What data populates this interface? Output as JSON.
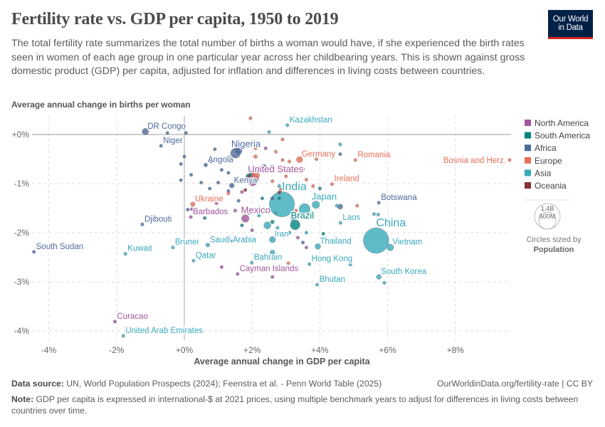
{
  "header": {
    "title": "Fertility rate vs. GDP per capita, 1950 to 2019",
    "subtitle": "The total fertility rate summarizes the total number of births a woman would have, if she experienced the birth rates seen in women of each age group in one particular year across her childbearing years. This is shown against gross domestic product (GDP) per capita, adjusted for inflation and differences in living costs between countries.",
    "logo_line1": "Our World",
    "logo_line2": "in Data"
  },
  "footer": {
    "source_label": "Data source:",
    "source_text": "UN, World Population Prospects (2024); Feenstra et al. - Penn World Table (2025)",
    "url": "OurWorldinData.org/fertility-rate | CC BY",
    "note_label": "Note:",
    "note_text": "GDP per capita is expressed in international-$ at 2021 prices, using multiple benchmark years to adjust for differences in living costs between countries over time."
  },
  "chart_data": {
    "type": "scatter",
    "title": "Fertility rate vs. GDP per capita, 1950 to 2019",
    "xlabel": "Average annual change in GDP per capita",
    "ylabel": "Average annual change in births per woman",
    "xlim": [
      -4.5,
      9.7
    ],
    "ylim": [
      -4.2,
      0.35
    ],
    "x_ticks": [
      -4,
      -2,
      0,
      2,
      4,
      6,
      8
    ],
    "x_tick_labels": [
      "-4%",
      "-2%",
      "+0%",
      "+2%",
      "+4%",
      "+6%",
      "+8%"
    ],
    "y_ticks": [
      0,
      -1,
      -2,
      -3,
      -4
    ],
    "y_tick_labels": [
      "+0%",
      "-1%",
      "-2%",
      "-3%",
      "-4%"
    ],
    "grid": true,
    "legend_position": "right",
    "regions": [
      {
        "name": "North America",
        "color": "#a2559c"
      },
      {
        "name": "South America",
        "color": "#00847e"
      },
      {
        "name": "Africa",
        "color": "#4c6a9c"
      },
      {
        "name": "Europe",
        "color": "#e56e5a"
      },
      {
        "name": "Asia",
        "color": "#38aaba"
      },
      {
        "name": "Oceania",
        "color": "#883039"
      }
    ],
    "size_legend": {
      "values": [
        "1.4B",
        "600M"
      ],
      "caption": "Circles sized by",
      "variable": "Population"
    },
    "points": [
      {
        "name": "DR Congo",
        "x": -1.15,
        "y": 0.06,
        "region": "Africa",
        "pop": 90
      },
      {
        "name": "Niger",
        "x": -0.69,
        "y": -0.23,
        "region": "Africa",
        "pop": 24
      },
      {
        "name": "Nigeria",
        "x": 1.51,
        "y": -0.38,
        "region": "Africa",
        "pop": 210
      },
      {
        "name": "Angola",
        "x": 0.63,
        "y": -0.62,
        "region": "Africa",
        "pop": 32
      },
      {
        "name": "Kenya",
        "x": 1.4,
        "y": -1.04,
        "region": "Africa",
        "pop": 52
      },
      {
        "name": "United States",
        "x": 2.0,
        "y": -0.92,
        "region": "North America",
        "pop": 330
      },
      {
        "name": "Germany",
        "x": 3.4,
        "y": -0.51,
        "region": "Europe",
        "pop": 83
      },
      {
        "name": "Romania",
        "x": 5.05,
        "y": -0.52,
        "region": "Europe",
        "pop": 19
      },
      {
        "name": "Bosnia and Herz.",
        "x": 9.6,
        "y": -0.52,
        "region": "Europe",
        "pop": 3
      },
      {
        "name": "Ireland",
        "x": 4.36,
        "y": -1.01,
        "region": "Europe",
        "pop": 5
      },
      {
        "name": "India",
        "x": 2.88,
        "y": -1.42,
        "region": "Asia",
        "pop": 1380
      },
      {
        "name": "Japan",
        "x": 3.88,
        "y": -1.43,
        "region": "Asia",
        "pop": 125
      },
      {
        "name": "Botswana",
        "x": 5.74,
        "y": -1.39,
        "region": "Africa",
        "pop": 2.5
      },
      {
        "name": "Ukraine",
        "x": 0.25,
        "y": -1.42,
        "region": "Europe",
        "pop": 44
      },
      {
        "name": "Barbados",
        "x": 0.19,
        "y": -1.68,
        "region": "North America",
        "pop": 0.3
      },
      {
        "name": "Mexico",
        "x": 1.8,
        "y": -1.71,
        "region": "North America",
        "pop": 125
      },
      {
        "name": "Brazil",
        "x": 3.27,
        "y": -1.84,
        "region": "South America",
        "pop": 210
      },
      {
        "name": "Laos",
        "x": 4.61,
        "y": -1.8,
        "region": "Asia",
        "pop": 7
      },
      {
        "name": "China",
        "x": 5.66,
        "y": -2.16,
        "region": "Asia",
        "pop": 1420
      },
      {
        "name": "Vietnam",
        "x": 6.08,
        "y": -2.3,
        "region": "Asia",
        "pop": 97
      },
      {
        "name": "Djibouti",
        "x": -1.24,
        "y": -1.83,
        "region": "Africa",
        "pop": 1
      },
      {
        "name": "Iran",
        "x": 2.6,
        "y": -2.14,
        "region": "Asia",
        "pop": 85
      },
      {
        "name": "Thailand",
        "x": 3.94,
        "y": -2.28,
        "region": "Asia",
        "pop": 70
      },
      {
        "name": "Saudi Arabia",
        "x": 0.69,
        "y": -2.25,
        "region": "Asia",
        "pop": 35
      },
      {
        "name": "South Sudan",
        "x": -4.44,
        "y": -2.39,
        "region": "Africa",
        "pop": 11
      },
      {
        "name": "Kuwait",
        "x": -1.74,
        "y": -2.43,
        "region": "Asia",
        "pop": 4
      },
      {
        "name": "Brunei",
        "x": -0.34,
        "y": -2.3,
        "region": "Asia",
        "pop": 0.4
      },
      {
        "name": "Qatar",
        "x": 0.27,
        "y": -2.57,
        "region": "Asia",
        "pop": 2.8
      },
      {
        "name": "Bahrain",
        "x": 1.99,
        "y": -2.61,
        "region": "Asia",
        "pop": 1.5
      },
      {
        "name": "Hong Kong",
        "x": 3.69,
        "y": -2.64,
        "region": "Asia",
        "pop": 7.5
      },
      {
        "name": "Cayman Islands",
        "x": 1.57,
        "y": -2.84,
        "region": "North America",
        "pop": 0.07
      },
      {
        "name": "South Korea",
        "x": 5.74,
        "y": -2.9,
        "region": "Asia",
        "pop": 52
      },
      {
        "name": "Bhutan",
        "x": 3.92,
        "y": -3.06,
        "region": "Asia",
        "pop": 0.8
      },
      {
        "name": "Curacao",
        "x": -2.05,
        "y": -3.81,
        "region": "North America",
        "pop": 0.15
      },
      {
        "name": "United Arab Emirates",
        "x": -1.8,
        "y": -4.1,
        "region": "Asia",
        "pop": 9
      },
      {
        "name": "Kazakhstan",
        "x": 3.04,
        "y": 0.19,
        "region": "Asia",
        "pop": 1
      },
      {
        "name": "",
        "x": -0.5,
        "y": 0.03,
        "region": "Africa",
        "pop": 3
      },
      {
        "name": "",
        "x": 0.05,
        "y": 0.03,
        "region": "Africa",
        "pop": 3
      },
      {
        "name": "",
        "x": 0.0,
        "y": -0.45,
        "region": "Africa",
        "pop": 3
      },
      {
        "name": "",
        "x": -0.1,
        "y": -0.6,
        "region": "Africa",
        "pop": 4
      },
      {
        "name": "",
        "x": 0.2,
        "y": -0.82,
        "region": "Africa",
        "pop": 3
      },
      {
        "name": "",
        "x": -0.1,
        "y": -0.93,
        "region": "Africa",
        "pop": 6
      },
      {
        "name": "",
        "x": 0.5,
        "y": -0.98,
        "region": "Africa",
        "pop": 3
      },
      {
        "name": "",
        "x": 0.8,
        "y": -0.55,
        "region": "Africa",
        "pop": 3
      },
      {
        "name": "",
        "x": 1.1,
        "y": -0.72,
        "region": "Africa",
        "pop": 3
      },
      {
        "name": "",
        "x": 1.3,
        "y": -0.78,
        "region": "Africa",
        "pop": 5
      },
      {
        "name": "",
        "x": 0.75,
        "y": -1.1,
        "region": "Africa",
        "pop": 3
      },
      {
        "name": "",
        "x": 1.0,
        "y": -0.98,
        "region": "Africa",
        "pop": 5
      },
      {
        "name": "",
        "x": 1.3,
        "y": -1.15,
        "region": "Africa",
        "pop": 3
      },
      {
        "name": "",
        "x": 0.1,
        "y": -1.53,
        "region": "Africa",
        "pop": 6
      },
      {
        "name": "",
        "x": 1.0,
        "y": -1.6,
        "region": "Africa",
        "pop": 20
      },
      {
        "name": "",
        "x": 1.6,
        "y": -1.35,
        "region": "Africa",
        "pop": 3
      },
      {
        "name": "",
        "x": 2.35,
        "y": -0.65,
        "region": "Africa",
        "pop": 40
      },
      {
        "name": "",
        "x": 1.3,
        "y": -0.45,
        "region": "Africa",
        "pop": 3
      },
      {
        "name": "",
        "x": 0.9,
        "y": -0.3,
        "region": "Africa",
        "pop": 3
      },
      {
        "name": "",
        "x": 1.6,
        "y": -0.33,
        "region": "Africa",
        "pop": 110
      },
      {
        "name": "",
        "x": 4.6,
        "y": -0.4,
        "region": "Africa",
        "pop": 3
      },
      {
        "name": "",
        "x": 4.6,
        "y": -1.47,
        "region": "Africa",
        "pop": 60
      },
      {
        "name": "",
        "x": 3.5,
        "y": -2.2,
        "region": "Africa",
        "pop": 3
      },
      {
        "name": "",
        "x": 2.6,
        "y": -1.3,
        "region": "Africa",
        "pop": 12
      },
      {
        "name": "",
        "x": 1.95,
        "y": 0.33,
        "region": "Europe",
        "pop": 3
      },
      {
        "name": "",
        "x": 2.1,
        "y": -0.28,
        "region": "Europe",
        "pop": 3
      },
      {
        "name": "",
        "x": 2.1,
        "y": -0.45,
        "region": "Europe",
        "pop": 30
      },
      {
        "name": "",
        "x": 2.9,
        "y": -0.1,
        "region": "Europe",
        "pop": 3
      },
      {
        "name": "",
        "x": 2.7,
        "y": -0.35,
        "region": "Europe",
        "pop": 3
      },
      {
        "name": "",
        "x": 2.9,
        "y": -0.52,
        "region": "Europe",
        "pop": 3
      },
      {
        "name": "",
        "x": 3.1,
        "y": -0.55,
        "region": "Europe",
        "pop": 4
      },
      {
        "name": "",
        "x": 3.5,
        "y": -0.7,
        "region": "Europe",
        "pop": 3
      },
      {
        "name": "",
        "x": 3.0,
        "y": -0.85,
        "region": "Europe",
        "pop": 3
      },
      {
        "name": "",
        "x": 3.3,
        "y": -1.05,
        "region": "Europe",
        "pop": 10
      },
      {
        "name": "",
        "x": 2.6,
        "y": -0.95,
        "region": "Europe",
        "pop": 3
      },
      {
        "name": "",
        "x": 3.6,
        "y": -0.92,
        "region": "Europe",
        "pop": 10
      },
      {
        "name": "",
        "x": 3.8,
        "y": -1.05,
        "region": "Europe",
        "pop": 3
      },
      {
        "name": "",
        "x": 5.1,
        "y": -1.45,
        "region": "Europe",
        "pop": 3
      },
      {
        "name": "",
        "x": 3.3,
        "y": -1.55,
        "region": "Europe",
        "pop": 5
      },
      {
        "name": "",
        "x": 1.3,
        "y": -1.2,
        "region": "Europe",
        "pop": 3
      },
      {
        "name": "",
        "x": 3.9,
        "y": -0.5,
        "region": "Europe",
        "pop": 3
      },
      {
        "name": "",
        "x": 2.1,
        "y": -0.83,
        "region": "Europe",
        "pop": 140
      },
      {
        "name": "",
        "x": 3.07,
        "y": -2.62,
        "region": "Europe",
        "pop": 3
      },
      {
        "name": "",
        "x": 2.85,
        "y": -1.12,
        "region": "Europe",
        "pop": 3
      },
      {
        "name": "",
        "x": 2.5,
        "y": 0.05,
        "region": "Asia",
        "pop": 3
      },
      {
        "name": "",
        "x": 4.6,
        "y": -0.2,
        "region": "Asia",
        "pop": 4
      },
      {
        "name": "",
        "x": 2.6,
        "y": -0.65,
        "region": "Asia",
        "pop": 3
      },
      {
        "name": "",
        "x": 1.9,
        "y": -0.85,
        "region": "Asia",
        "pop": 70
      },
      {
        "name": "",
        "x": 2.8,
        "y": -1.05,
        "region": "Asia",
        "pop": 3
      },
      {
        "name": "",
        "x": 1.9,
        "y": -1.6,
        "region": "Asia",
        "pop": 3
      },
      {
        "name": "",
        "x": 2.2,
        "y": -1.65,
        "region": "Asia",
        "pop": 5
      },
      {
        "name": "",
        "x": 2.7,
        "y": -1.6,
        "region": "Asia",
        "pop": 5
      },
      {
        "name": "",
        "x": 2.45,
        "y": -1.85,
        "region": "Asia",
        "pop": 110
      },
      {
        "name": "",
        "x": 3.55,
        "y": -1.52,
        "region": "Asia",
        "pop": 270
      },
      {
        "name": "",
        "x": 3.1,
        "y": -2.0,
        "region": "Asia",
        "pop": 3
      },
      {
        "name": "",
        "x": 3.6,
        "y": -2.0,
        "region": "Asia",
        "pop": 5
      },
      {
        "name": "",
        "x": 2.6,
        "y": -2.4,
        "region": "Asia",
        "pop": 50
      },
      {
        "name": "",
        "x": 4.5,
        "y": -1.45,
        "region": "Asia",
        "pop": 3
      },
      {
        "name": "",
        "x": 5.6,
        "y": -1.62,
        "region": "Asia",
        "pop": 3
      },
      {
        "name": "",
        "x": 5.72,
        "y": -1.63,
        "region": "Asia",
        "pop": 3
      },
      {
        "name": "",
        "x": 4.9,
        "y": -2.65,
        "region": "Asia",
        "pop": 3
      },
      {
        "name": "",
        "x": 5.9,
        "y": -3.02,
        "region": "Asia",
        "pop": 3
      },
      {
        "name": "",
        "x": 3.2,
        "y": -1.72,
        "region": "Asia",
        "pop": 40
      },
      {
        "name": "",
        "x": 2.75,
        "y": -1.9,
        "region": "Asia",
        "pop": 20
      },
      {
        "name": "",
        "x": 2.1,
        "y": -0.75,
        "region": "South America",
        "pop": 5
      },
      {
        "name": "",
        "x": 1.95,
        "y": -0.82,
        "region": "South America",
        "pop": 12
      },
      {
        "name": "",
        "x": 4.0,
        "y": -1.1,
        "region": "South America",
        "pop": 6
      },
      {
        "name": "",
        "x": 2.3,
        "y": -1.3,
        "region": "South America",
        "pop": 3
      },
      {
        "name": "",
        "x": 2.8,
        "y": -1.3,
        "region": "South America",
        "pop": 3
      },
      {
        "name": "",
        "x": 2.6,
        "y": -1.78,
        "region": "South America",
        "pop": 30
      },
      {
        "name": "",
        "x": 1.7,
        "y": -1.85,
        "region": "South America",
        "pop": 20
      },
      {
        "name": "",
        "x": 0.6,
        "y": -1.7,
        "region": "South America",
        "pop": 3
      },
      {
        "name": "",
        "x": 1.4,
        "y": -2.18,
        "region": "South America",
        "pop": 3
      },
      {
        "name": "",
        "x": 4.1,
        "y": -2.02,
        "region": "South America",
        "pop": 3
      },
      {
        "name": "",
        "x": 2.4,
        "y": -0.28,
        "region": "North America",
        "pop": 3
      },
      {
        "name": "",
        "x": 1.7,
        "y": -1.17,
        "region": "North America",
        "pop": 6
      },
      {
        "name": "",
        "x": 1.1,
        "y": -1.3,
        "region": "North America",
        "pop": 3
      },
      {
        "name": "",
        "x": 1.5,
        "y": -1.55,
        "region": "North America",
        "pop": 3
      },
      {
        "name": "",
        "x": 2.0,
        "y": -1.95,
        "region": "North America",
        "pop": 3
      },
      {
        "name": "",
        "x": 1.1,
        "y": -2.7,
        "region": "North America",
        "pop": 3
      },
      {
        "name": "",
        "x": 2.6,
        "y": -2.9,
        "region": "North America",
        "pop": 3
      },
      {
        "name": "",
        "x": 3.35,
        "y": -2.1,
        "region": "North America",
        "pop": 3
      },
      {
        "name": "",
        "x": 3.6,
        "y": -2.3,
        "region": "North America",
        "pop": 3
      },
      {
        "name": "",
        "x": 0.95,
        "y": -1.4,
        "region": "North America",
        "pop": 3
      },
      {
        "name": "",
        "x": 0.22,
        "y": -1.52,
        "region": "North America",
        "pop": 3
      },
      {
        "name": "",
        "x": 1.8,
        "y": -1.13,
        "region": "Oceania",
        "pop": 3
      },
      {
        "name": "",
        "x": 2.8,
        "y": -1.18,
        "region": "Oceania",
        "pop": 3
      },
      {
        "name": "",
        "x": 1.9,
        "y": -0.85,
        "region": "Oceania",
        "pop": 3
      }
    ]
  }
}
